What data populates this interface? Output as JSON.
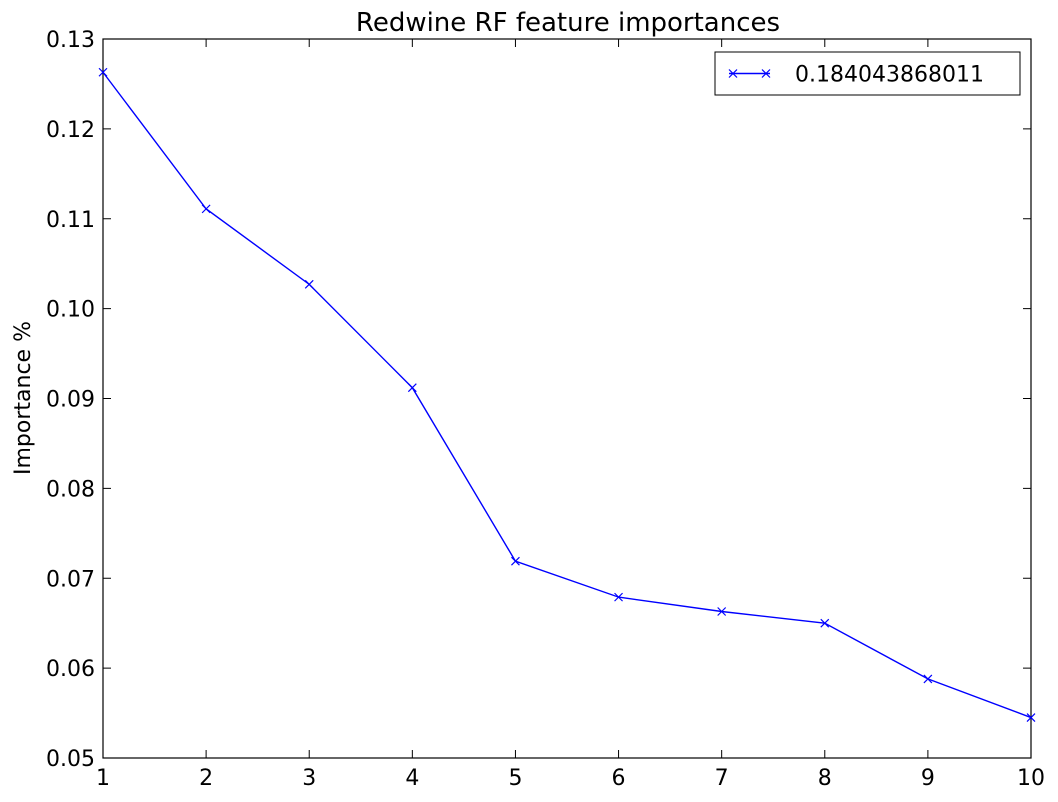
{
  "chart_data": {
    "type": "line",
    "title": "Redwine RF feature importances",
    "xlabel": "",
    "ylabel": "Importance %",
    "xlim": [
      1,
      10
    ],
    "ylim": [
      0.05,
      0.13
    ],
    "x_ticks": [
      1,
      2,
      3,
      4,
      5,
      6,
      7,
      8,
      9,
      10
    ],
    "x_tick_labels": [
      "1",
      "2",
      "3",
      "4",
      "5",
      "6",
      "7",
      "8",
      "9",
      "10"
    ],
    "y_ticks": [
      0.05,
      0.06,
      0.07,
      0.08,
      0.09,
      0.1,
      0.11,
      0.12,
      0.13
    ],
    "y_tick_labels": [
      "0.05",
      "0.06",
      "0.07",
      "0.08",
      "0.09",
      "0.10",
      "0.11",
      "0.12",
      "0.13"
    ],
    "grid": false,
    "legend_position": "top-right",
    "series": [
      {
        "name": "0.184043868011",
        "color": "#0000ff",
        "marker": "x",
        "x": [
          1,
          2,
          3,
          4,
          5,
          6,
          7,
          8,
          9,
          10
        ],
        "values": [
          0.1263,
          0.1111,
          0.1027,
          0.0912,
          0.0719,
          0.0679,
          0.0663,
          0.065,
          0.0588,
          0.0545
        ]
      }
    ]
  }
}
